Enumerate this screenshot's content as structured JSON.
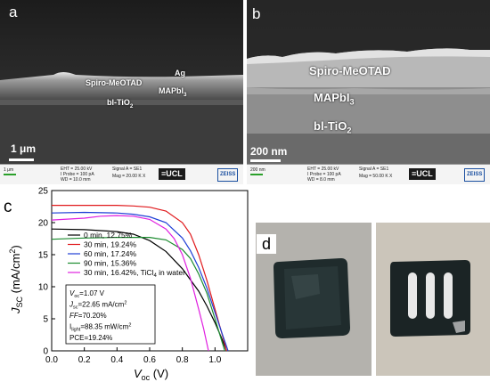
{
  "panels": {
    "a": {
      "letter": "a",
      "labels": {
        "ag": "Ag",
        "spiro": "Spiro-MeOTAD",
        "mapbi": "MAPbI",
        "mapbi_sub": "3",
        "tio2": "bl-TiO",
        "tio2_sub": "2"
      },
      "scale": "1 μm",
      "info": {
        "scale_small": "1 μm",
        "eht": "EHT = 25.00 kV",
        "probe": "I Probe =    100 pA",
        "wd": "WD = 10.0 mm",
        "signal": "Signal A = SE1",
        "mag": "Mag =    20.00 K X",
        "logo": "≡UCL",
        "zeiss": "ZEISS"
      }
    },
    "b": {
      "letter": "b",
      "labels": {
        "spiro": "Spiro-MeOTAD",
        "mapbi": "MAPbI",
        "mapbi_sub": "3",
        "tio2": "bl-TiO",
        "tio2_sub": "2"
      },
      "scale": "200 nm",
      "info": {
        "scale_small": "200 nm",
        "eht": "EHT = 25.00 kV",
        "probe": "I Probe =    100 pA",
        "wd": "WD =  8.0 mm",
        "signal": "Signal A = SE1",
        "mag": "Mag =    50.00 K X",
        "logo": "≡UCL",
        "zeiss": "ZEISS"
      }
    },
    "c": {
      "letter": "c"
    },
    "d": {
      "letter": "d"
    }
  },
  "chart_data": {
    "type": "line",
    "xlabel": "V",
    "xlabel_sub": "oc",
    "xlabel_unit": "(V)",
    "ylabel": "J",
    "ylabel_sub": "SC",
    "ylabel_unit": "(mA/cm",
    "ylabel_unit_sup": "2",
    "ylabel_unit_close": ")",
    "xlim": [
      0.0,
      1.2
    ],
    "ylim": [
      0,
      25
    ],
    "xticks": [
      "0.0",
      "0.2",
      "0.4",
      "0.6",
      "0.8",
      "1.0"
    ],
    "yticks": [
      "0",
      "5",
      "10",
      "15",
      "20",
      "25"
    ],
    "legend_position": "upper-middle",
    "series": [
      {
        "name": "0 min, 12.75%",
        "color": "#000000",
        "x": [
          0.0,
          0.2,
          0.4,
          0.5,
          0.6,
          0.7,
          0.8,
          0.9,
          0.95,
          1.0,
          1.04,
          1.07
        ],
        "y": [
          19.0,
          18.9,
          18.6,
          18.2,
          17.2,
          15.5,
          12.8,
          9.3,
          7.0,
          4.4,
          2.0,
          0.0
        ]
      },
      {
        "name": "30 min, 19.24%",
        "color": "#e0191c",
        "x": [
          0.0,
          0.2,
          0.4,
          0.5,
          0.6,
          0.7,
          0.8,
          0.85,
          0.9,
          0.95,
          1.0,
          1.05,
          1.07
        ],
        "y": [
          22.7,
          22.7,
          22.7,
          22.6,
          22.4,
          21.8,
          20.0,
          18.2,
          15.0,
          11.0,
          6.5,
          2.0,
          0.0
        ]
      },
      {
        "name": "60 min, 17.24%",
        "color": "#1f3fd6",
        "x": [
          0.0,
          0.2,
          0.4,
          0.5,
          0.6,
          0.7,
          0.8,
          0.85,
          0.9,
          0.95,
          1.0,
          1.05,
          1.08
        ],
        "y": [
          21.5,
          21.6,
          21.5,
          21.3,
          20.9,
          20.0,
          17.6,
          15.6,
          13.0,
          9.8,
          6.0,
          2.2,
          0.0
        ]
      },
      {
        "name": "90 min, 15.36%",
        "color": "#1a8a2e",
        "x": [
          0.0,
          0.2,
          0.4,
          0.5,
          0.6,
          0.7,
          0.8,
          0.85,
          0.9,
          0.95,
          1.0,
          1.03,
          1.06
        ],
        "y": [
          17.4,
          17.6,
          17.7,
          17.7,
          17.7,
          17.3,
          15.8,
          14.4,
          12.0,
          9.0,
          5.0,
          2.5,
          0.0
        ]
      },
      {
        "name": "30 min, 16.42%, TiCl",
        "name_sub": "4",
        "name_suffix": " in water",
        "color": "#e020e0",
        "x": [
          0.0,
          0.2,
          0.3,
          0.4,
          0.5,
          0.6,
          0.7,
          0.75,
          0.8,
          0.85,
          0.9,
          0.93,
          0.96
        ],
        "y": [
          20.4,
          20.7,
          21.0,
          21.1,
          21.0,
          20.5,
          19.0,
          17.5,
          15.0,
          11.3,
          6.5,
          3.5,
          0.0
        ]
      }
    ],
    "annotation": [
      {
        "key": "voc",
        "main": "V",
        "sub": "oc",
        "rest": "=1.07 V"
      },
      {
        "key": "jsc",
        "main": "J",
        "sub": "sc",
        "rest": "=22.65 mA/cm",
        "sup": "2"
      },
      {
        "key": "ff",
        "main": "FF",
        "rest": "=70.20%"
      },
      {
        "key": "plight",
        "main": "I",
        "sub": "light",
        "rest": "=88.35 mW/cm",
        "sup": "2"
      },
      {
        "key": "pce",
        "main": "PCE",
        "rest": "=19.24%"
      }
    ]
  }
}
